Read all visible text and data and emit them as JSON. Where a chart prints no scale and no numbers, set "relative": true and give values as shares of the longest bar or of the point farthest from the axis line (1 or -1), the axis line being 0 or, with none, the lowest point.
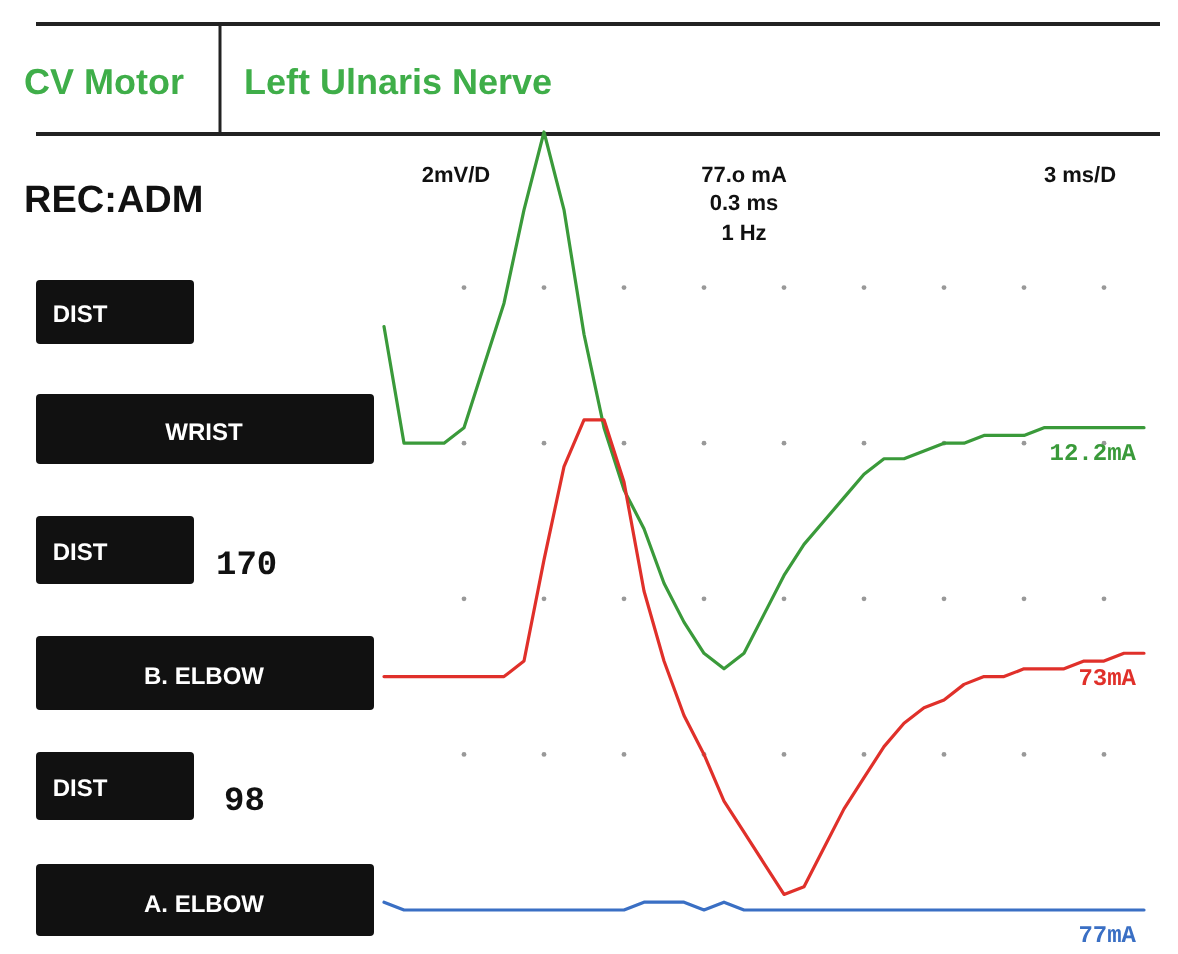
{
  "chart_data": {
    "type": "line",
    "title": "CV Motor",
    "subtitle": "Left Ulnaris Nerve",
    "relative": true,
    "marker": "none",
    "line_style": "solid",
    "annotations": [
      "REC:ADM",
      "2mV/D",
      "77.o mA",
      "0.3 ms",
      "1 Hz",
      "3 ms/D",
      "DIST",
      "WRIST",
      "DIST",
      "170",
      "B. ELBOW",
      "DIST",
      "98",
      "A. ELBOW"
    ],
    "categories": [
      null,
      null,
      null,
      null,
      null,
      null,
      null,
      null,
      null,
      null,
      null,
      null,
      null,
      null,
      null,
      null,
      null,
      null,
      null,
      null,
      null,
      null,
      null,
      null,
      null,
      null,
      null,
      null,
      null,
      null,
      null,
      null,
      null,
      null,
      null,
      null,
      null,
      null,
      null
    ],
    "series": [
      {
        "name": "12.2mA",
        "color": "#3a9a3a",
        "values": [
          0.75,
          0.6,
          0.6,
          0.6,
          0.62,
          0.7,
          0.78,
          0.9,
          1.0,
          0.9,
          0.74,
          0.62,
          0.54,
          0.49,
          0.42,
          0.37,
          0.33,
          0.31,
          0.33,
          0.38,
          0.43,
          0.47,
          0.5,
          0.53,
          0.56,
          0.58,
          0.58,
          0.59,
          0.6,
          0.6,
          0.61,
          0.61,
          0.61,
          0.62,
          0.62,
          0.62,
          0.62,
          0.62,
          0.62
        ]
      },
      {
        "name": "73mA",
        "color": "#e0302a",
        "values": [
          0.3,
          0.3,
          0.3,
          0.3,
          0.3,
          0.3,
          0.3,
          0.32,
          0.45,
          0.57,
          0.63,
          0.63,
          0.55,
          0.41,
          0.32,
          0.25,
          0.2,
          0.14,
          0.1,
          0.06,
          0.02,
          0.03,
          0.08,
          0.13,
          0.17,
          0.21,
          0.24,
          0.26,
          0.27,
          0.29,
          0.3,
          0.3,
          0.31,
          0.31,
          0.31,
          0.32,
          0.32,
          0.33,
          0.33
        ]
      },
      {
        "name": "77mA",
        "color": "#3a6fc4",
        "values": [
          0.01,
          0,
          0,
          0,
          0,
          0,
          0,
          0,
          0,
          0,
          0,
          0,
          0,
          0.01,
          0.01,
          0.01,
          0,
          0.01,
          0,
          0,
          0,
          0,
          0,
          0,
          0,
          0,
          0,
          0,
          0,
          0,
          0,
          0,
          0,
          0,
          0,
          0,
          0,
          0,
          0
        ]
      }
    ]
  }
}
